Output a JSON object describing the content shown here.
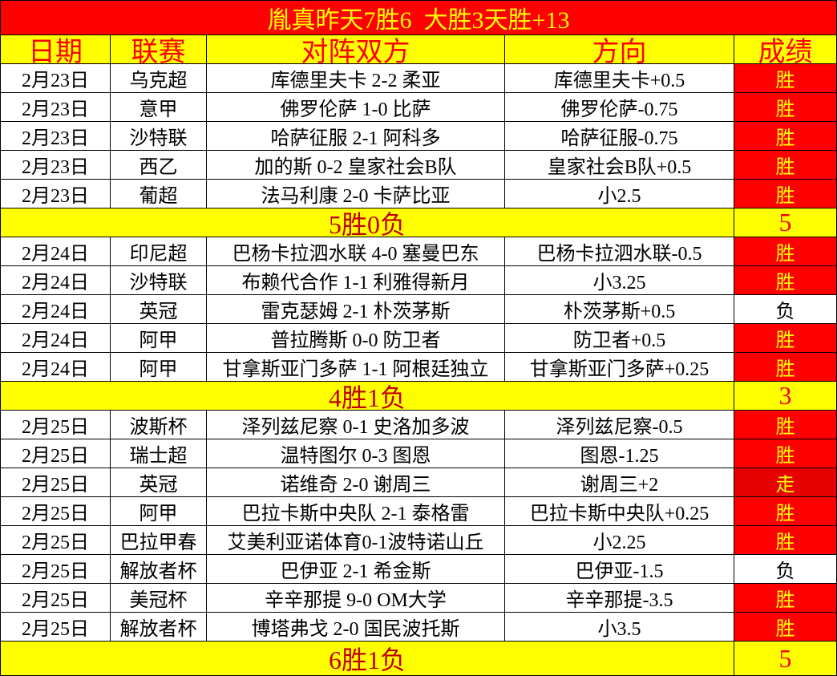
{
  "title": "胤真昨天7胜6  大胜3天胜+13",
  "header": [
    "日期",
    "联赛",
    "对阵双方",
    "方向",
    "成绩"
  ],
  "groups": [
    {
      "rows": [
        {
          "cells": [
            "2月23日",
            "乌克超",
            "库德里夫卡 2-2 柔亚",
            "库德里夫卡+0.5",
            "胜"
          ],
          "result_fill": "#ff0000",
          "result_color": "#ffff00"
        },
        {
          "cells": [
            "2月23日",
            "意甲",
            "佛罗伦萨 1-0 比萨",
            "佛罗伦萨-0.75",
            "胜"
          ],
          "result_fill": "#ff0000",
          "result_color": "#ffff00"
        },
        {
          "cells": [
            "2月23日",
            "沙特联",
            "哈萨征服 2-1 阿科多",
            "哈萨征服-0.75",
            "胜"
          ],
          "result_fill": "#ff0000",
          "result_color": "#ffff00"
        },
        {
          "cells": [
            "2月23日",
            "西乙",
            "加的斯 0-2 皇家社会B队",
            "皇家社会B队+0.5",
            "胜"
          ],
          "result_fill": "#ff0000",
          "result_color": "#ffff00"
        },
        {
          "cells": [
            "2月23日",
            "葡超",
            "法马利康 2-0 卡萨比亚",
            "小2.5",
            "胜"
          ],
          "result_fill": "#ff0000",
          "result_color": "#ffff00"
        }
      ],
      "summary": "5胜0负",
      "summary_result": "5"
    },
    {
      "rows": [
        {
          "cells": [
            "2月24日",
            "印尼超",
            "巴杨卡拉泗水联 4-0 塞曼巴东",
            "巴杨卡拉泗水联-0.5",
            "胜"
          ],
          "result_fill": "#ff0000",
          "result_color": "#ffff00"
        },
        {
          "cells": [
            "2月24日",
            "沙特联",
            "布赖代合作 1-1 利雅得新月",
            "小3.25",
            "胜"
          ],
          "result_fill": "#ff0000",
          "result_color": "#ffff00"
        },
        {
          "cells": [
            "2月24日",
            "英冠",
            "雷克瑟姆 2-1 朴茨茅斯",
            "朴茨茅斯+0.5",
            "负"
          ],
          "result_fill": "#ffffff",
          "result_color": "#000000"
        },
        {
          "cells": [
            "2月24日",
            "阿甲",
            "普拉腾斯 0-0 防卫者",
            "防卫者+0.5",
            "胜"
          ],
          "result_fill": "#ff0000",
          "result_color": "#ffff00"
        },
        {
          "cells": [
            "2月24日",
            "阿甲",
            "甘拿斯亚门多萨 1-1 阿根廷独立",
            "甘拿斯亚门多萨+0.25",
            "胜"
          ],
          "result_fill": "#ff0000",
          "result_color": "#ffff00"
        }
      ],
      "summary": "4胜1负",
      "summary_result": "3"
    },
    {
      "rows": [
        {
          "cells": [
            "2月25日",
            "波斯杯",
            "泽列兹尼察 0-1 史洛加多波",
            "泽列兹尼察-0.5",
            "胜"
          ],
          "result_fill": "#ff0000",
          "result_color": "#ffff00"
        },
        {
          "cells": [
            "2月25日",
            "瑞士超",
            "温特图尔 0-3 图恩",
            "图恩-1.25",
            "胜"
          ],
          "result_fill": "#ff0000",
          "result_color": "#ffff00"
        },
        {
          "cells": [
            "2月25日",
            "英冠",
            "诺维奇 2-0 谢周三",
            "谢周三+2",
            "走"
          ],
          "result_fill": "#e60000",
          "result_color": "#ffff00"
        },
        {
          "cells": [
            "2月25日",
            "阿甲",
            "巴拉卡斯中央队 2-1 泰格雷",
            "巴拉卡斯中央队+0.25",
            "胜"
          ],
          "result_fill": "#ff0000",
          "result_color": "#ffff00"
        },
        {
          "cells": [
            "2月25日",
            "巴拉甲春",
            "艾美利亚诺体育0-1波特诺山丘",
            "小2.25",
            "胜"
          ],
          "result_fill": "#ff0000",
          "result_color": "#ffff00"
        },
        {
          "cells": [
            "2月25日",
            "解放者杯",
            "巴伊亚 2-1 希金斯",
            "巴伊亚-1.5",
            "负"
          ],
          "result_fill": "#ffffff",
          "result_color": "#000000"
        },
        {
          "cells": [
            "2月25日",
            "美冠杯",
            "辛辛那提 9-0 OM大学",
            "辛辛那提-3.5",
            "胜"
          ],
          "result_fill": "#ff0000",
          "result_color": "#ffff00"
        },
        {
          "cells": [
            "2月25日",
            "解放者杯",
            "博塔弗戈 2-0 国民波托斯",
            "小3.5",
            "胜"
          ],
          "result_fill": "#ff0000",
          "result_color": "#ffff00"
        }
      ],
      "summary": "6胜1负",
      "summary_result": "5"
    }
  ]
}
